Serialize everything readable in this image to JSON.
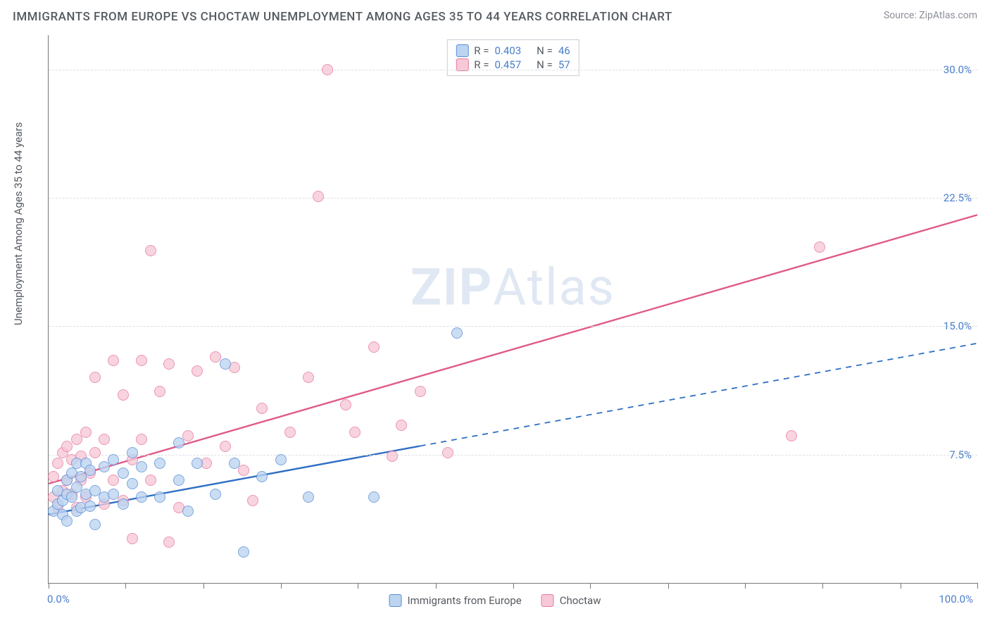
{
  "header": {
    "title": "IMMIGRANTS FROM EUROPE VS CHOCTAW UNEMPLOYMENT AMONG AGES 35 TO 44 YEARS CORRELATION CHART",
    "source_prefix": "Source: ",
    "source_link": "ZipAtlas.com"
  },
  "watermark": {
    "bold": "ZIP",
    "rest": "Atlas"
  },
  "chart": {
    "type": "scatter",
    "ylabel": "Unemployment Among Ages 35 to 44 years",
    "xlim": [
      0,
      100
    ],
    "ylim": [
      0,
      32
    ],
    "x_min_label": "0.0%",
    "x_max_label": "100.0%",
    "xtick_positions": [
      0,
      8.3,
      16.7,
      25,
      33.3,
      41.7,
      50,
      58.3,
      66.7,
      75,
      83.3,
      91.7,
      100
    ],
    "ygrid": [
      {
        "value": 7.5,
        "label": "7.5%"
      },
      {
        "value": 15.0,
        "label": "15.0%"
      },
      {
        "value": 22.5,
        "label": "22.5%"
      },
      {
        "value": 30.0,
        "label": "30.0%"
      }
    ],
    "background_color": "#ffffff",
    "grid_color": "#dcdfe3",
    "axis_color": "#777777",
    "label_fontsize": 15,
    "tick_color": "#4a7ec9",
    "marker_radius": 8,
    "marker_border_width": 1.5,
    "series": [
      {
        "key": "europe",
        "label": "Immigrants from Europe",
        "fill": "#bcd4f0",
        "stroke": "#5a8fd6",
        "line_color": "#2f6fc4",
        "R": "0.403",
        "N": "46",
        "trend": {
          "x1": 0,
          "y1": 4.0,
          "x_solid_end": 40,
          "x2": 100,
          "y2": 14.0
        },
        "points": [
          [
            0.5,
            4.2
          ],
          [
            1,
            4.6
          ],
          [
            1,
            5.4
          ],
          [
            1.5,
            4.0
          ],
          [
            1.5,
            4.8
          ],
          [
            2,
            3.6
          ],
          [
            2,
            5.2
          ],
          [
            2,
            6.0
          ],
          [
            2.5,
            5.0
          ],
          [
            2.5,
            6.4
          ],
          [
            3,
            4.2
          ],
          [
            3,
            5.6
          ],
          [
            3,
            7.0
          ],
          [
            3.5,
            4.4
          ],
          [
            3.5,
            6.2
          ],
          [
            4,
            5.2
          ],
          [
            4,
            7.0
          ],
          [
            4.5,
            4.5
          ],
          [
            4.5,
            6.6
          ],
          [
            5,
            5.4
          ],
          [
            5,
            3.4
          ],
          [
            6,
            6.8
          ],
          [
            6,
            5.0
          ],
          [
            7,
            7.2
          ],
          [
            7,
            5.2
          ],
          [
            8,
            6.4
          ],
          [
            8,
            4.6
          ],
          [
            9,
            5.8
          ],
          [
            9,
            7.6
          ],
          [
            10,
            5.0
          ],
          [
            10,
            6.8
          ],
          [
            12,
            7.0
          ],
          [
            12,
            5.0
          ],
          [
            14,
            6.0
          ],
          [
            14,
            8.2
          ],
          [
            15,
            4.2
          ],
          [
            16,
            7.0
          ],
          [
            18,
            5.2
          ],
          [
            19,
            12.8
          ],
          [
            20,
            7.0
          ],
          [
            21,
            1.8
          ],
          [
            23,
            6.2
          ],
          [
            25,
            7.2
          ],
          [
            28,
            5.0
          ],
          [
            35,
            5.0
          ],
          [
            44,
            14.6
          ]
        ]
      },
      {
        "key": "choctaw",
        "label": "Choctaw",
        "fill": "#f7c9d6",
        "stroke": "#e678a0",
        "line_color": "#e05a8a",
        "R": "0.457",
        "N": "57",
        "trend": {
          "x1": 0,
          "y1": 5.8,
          "x_solid_end": 100,
          "x2": 100,
          "y2": 21.5
        },
        "points": [
          [
            0.5,
            5.0
          ],
          [
            0.5,
            6.2
          ],
          [
            1,
            7.0
          ],
          [
            1,
            4.4
          ],
          [
            1.5,
            7.6
          ],
          [
            1.5,
            5.4
          ],
          [
            2,
            8.0
          ],
          [
            2,
            6.0
          ],
          [
            2.5,
            5.2
          ],
          [
            2.5,
            7.2
          ],
          [
            3,
            4.4
          ],
          [
            3,
            8.4
          ],
          [
            3.5,
            6.0
          ],
          [
            3.5,
            7.4
          ],
          [
            4,
            5.0
          ],
          [
            4,
            8.8
          ],
          [
            4.5,
            6.4
          ],
          [
            5,
            7.6
          ],
          [
            5,
            12.0
          ],
          [
            6,
            4.6
          ],
          [
            6,
            8.4
          ],
          [
            7,
            6.0
          ],
          [
            7,
            13.0
          ],
          [
            8,
            4.8
          ],
          [
            8,
            11.0
          ],
          [
            9,
            7.2
          ],
          [
            9,
            2.6
          ],
          [
            10,
            13.0
          ],
          [
            10,
            8.4
          ],
          [
            11,
            6.0
          ],
          [
            11,
            19.4
          ],
          [
            12,
            11.2
          ],
          [
            13,
            2.4
          ],
          [
            13,
            12.8
          ],
          [
            14,
            4.4
          ],
          [
            15,
            8.6
          ],
          [
            16,
            12.4
          ],
          [
            17,
            7.0
          ],
          [
            18,
            13.2
          ],
          [
            19,
            8.0
          ],
          [
            20,
            12.6
          ],
          [
            21,
            6.6
          ],
          [
            22,
            4.8
          ],
          [
            23,
            10.2
          ],
          [
            26,
            8.8
          ],
          [
            28,
            12.0
          ],
          [
            29,
            22.6
          ],
          [
            30,
            30.0
          ],
          [
            32,
            10.4
          ],
          [
            33,
            8.8
          ],
          [
            35,
            13.8
          ],
          [
            37,
            7.4
          ],
          [
            38,
            9.2
          ],
          [
            40,
            11.2
          ],
          [
            43,
            7.6
          ],
          [
            80,
            8.6
          ],
          [
            83,
            19.6
          ]
        ]
      }
    ],
    "legend_top": {
      "R_label": "R =",
      "N_label": "N ="
    }
  }
}
